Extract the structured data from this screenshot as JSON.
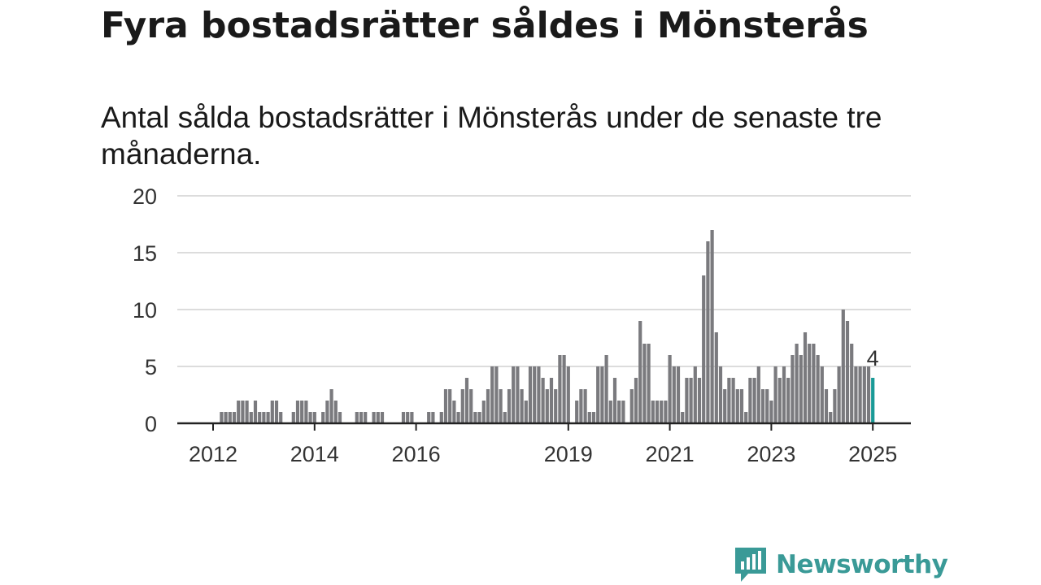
{
  "title": "Fyra bostadsrätter såldes i Mönsterås",
  "subtitle": "Antal sålda bostadsrätter i Mönsterås under de senaste tre månaderna.",
  "logo_text": "Newsworthy",
  "colors": {
    "bar": "#7a7a7e",
    "highlight": "#1a9a97",
    "grid": "#dcdcdc",
    "axis": "#222222"
  },
  "chart_data": {
    "type": "bar",
    "ylim": [
      0,
      20
    ],
    "yticks": [
      0,
      5,
      10,
      15,
      20
    ],
    "xticks": [
      {
        "label": "2012",
        "index": 0
      },
      {
        "label": "2014",
        "index": 24
      },
      {
        "label": "2016",
        "index": 48
      },
      {
        "label": "2019",
        "index": 84
      },
      {
        "label": "2021",
        "index": 108
      },
      {
        "label": "2023",
        "index": 132
      },
      {
        "label": "2025",
        "index": 156
      }
    ],
    "grid": true,
    "highlight_label": "4",
    "start": "2012-01",
    "end": "2025-01",
    "values": [
      0,
      0,
      1,
      1,
      1,
      1,
      2,
      2,
      2,
      1,
      2,
      1,
      1,
      1,
      2,
      2,
      1,
      0,
      0,
      1,
      2,
      2,
      2,
      1,
      1,
      0,
      1,
      2,
      3,
      2,
      1,
      0,
      0,
      0,
      1,
      1,
      1,
      0,
      1,
      1,
      1,
      0,
      0,
      0,
      0,
      1,
      1,
      1,
      0,
      0,
      0,
      1,
      1,
      0,
      1,
      3,
      3,
      2,
      1,
      3,
      4,
      3,
      1,
      1,
      2,
      3,
      5,
      5,
      3,
      1,
      3,
      5,
      5,
      3,
      2,
      5,
      5,
      5,
      4,
      3,
      4,
      3,
      6,
      6,
      5,
      0,
      2,
      3,
      3,
      1,
      1,
      5,
      5,
      6,
      2,
      4,
      2,
      2,
      0,
      3,
      4,
      9,
      7,
      7,
      2,
      2,
      2,
      2,
      6,
      5,
      5,
      1,
      4,
      4,
      5,
      4,
      13,
      16,
      17,
      8,
      5,
      3,
      4,
      4,
      3,
      3,
      1,
      4,
      4,
      5,
      3,
      3,
      2,
      5,
      4,
      5,
      4,
      6,
      7,
      6,
      8,
      7,
      7,
      6,
      5,
      3,
      1,
      3,
      5,
      10,
      9,
      7,
      5,
      5,
      5,
      5,
      4
    ]
  }
}
